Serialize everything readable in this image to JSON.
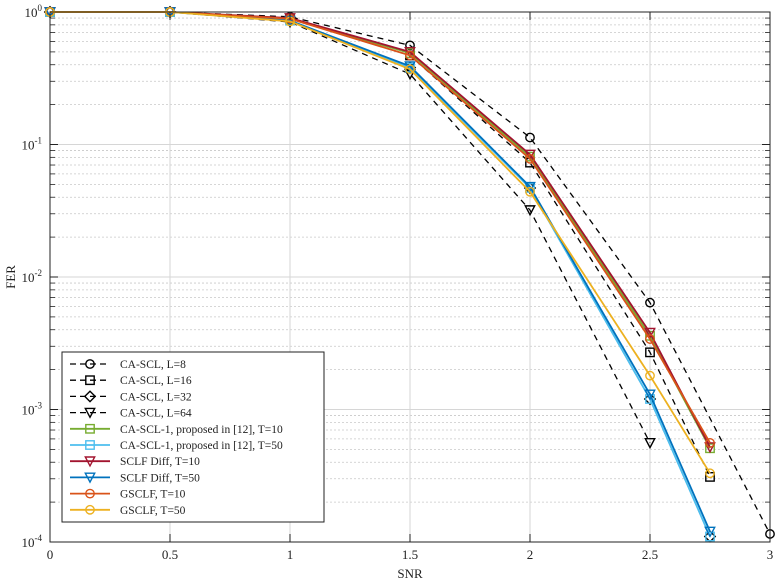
{
  "chart_data": {
    "type": "line",
    "title": "",
    "xlabel": "SNR",
    "ylabel": "FER",
    "xlim": [
      0,
      3
    ],
    "ylim": [
      0.0001,
      1
    ],
    "yscale": "log",
    "grid": true,
    "legend_position": "bottom-left",
    "x_ticks": [
      "0",
      "0.5",
      "1",
      "1.5",
      "2",
      "2.5",
      "3"
    ],
    "y_ticks": [
      {
        "base": "10",
        "exp": "0"
      },
      {
        "base": "10",
        "exp": "-1"
      },
      {
        "base": "10",
        "exp": "-2"
      },
      {
        "base": "10",
        "exp": "-3"
      },
      {
        "base": "10",
        "exp": "-4"
      }
    ],
    "series": [
      {
        "name": "CA-SCL, L=8",
        "color": "#000000",
        "dash": true,
        "marker": "circle",
        "x": [
          0,
          0.5,
          1,
          1.5,
          2,
          2.5,
          3
        ],
        "y": [
          1.0,
          1.0,
          0.92,
          0.56,
          0.113,
          0.0064,
          0.000115
        ]
      },
      {
        "name": "CA-SCL, L=16",
        "color": "#000000",
        "dash": true,
        "marker": "square",
        "x": [
          0,
          0.5,
          1,
          1.5,
          2,
          2.5,
          2.75
        ],
        "y": [
          1.0,
          1.0,
          0.89,
          0.47,
          0.073,
          0.0027,
          0.00031
        ]
      },
      {
        "name": "CA-SCL, L=32",
        "color": "#000000",
        "dash": true,
        "marker": "diamond",
        "x": [
          0,
          0.5,
          1,
          1.5,
          2,
          2.5,
          2.75
        ],
        "y": [
          1.0,
          1.0,
          0.86,
          0.38,
          0.047,
          0.0012,
          0.00011
        ]
      },
      {
        "name": "CA-SCL, L=64",
        "color": "#000000",
        "dash": true,
        "marker": "triangle-down",
        "x": [
          0,
          0.5,
          1,
          1.5,
          2,
          2.5
        ],
        "y": [
          1.0,
          1.0,
          0.84,
          0.34,
          0.032,
          0.00056
        ]
      },
      {
        "name": "CA-SCL-1, proposed in [12], T=10",
        "color": "#77ac30",
        "dash": false,
        "marker": "square",
        "x": [
          0,
          0.5,
          1,
          1.5,
          2,
          2.5,
          2.75
        ],
        "y": [
          1.0,
          1.0,
          0.89,
          0.49,
          0.081,
          0.0036,
          0.00051
        ]
      },
      {
        "name": "CA-SCL-1, proposed in [12],  T=50",
        "color": "#4dbeee",
        "dash": false,
        "marker": "square",
        "x": [
          0,
          0.5,
          1,
          1.5,
          2,
          2.5,
          2.75
        ],
        "y": [
          1.0,
          1.0,
          0.86,
          0.38,
          0.047,
          0.0012,
          0.00011
        ]
      },
      {
        "name": "SCLF Diff, T=10",
        "color": "#a2142f",
        "dash": false,
        "marker": "triangle-down",
        "x": [
          0,
          0.5,
          1,
          1.5,
          2,
          2.5,
          2.75
        ],
        "y": [
          1.0,
          1.0,
          0.9,
          0.5,
          0.084,
          0.0038,
          0.00052
        ]
      },
      {
        "name": "SCLF Diff, T=50",
        "color": "#0072bd",
        "dash": false,
        "marker": "triangle-down",
        "x": [
          0,
          0.5,
          1,
          1.5,
          2,
          2.5,
          2.75
        ],
        "y": [
          1.0,
          1.0,
          0.86,
          0.39,
          0.048,
          0.0013,
          0.00012
        ]
      },
      {
        "name": "GSCLF, T=10",
        "color": "#d95319",
        "dash": false,
        "marker": "circle",
        "x": [
          0,
          0.5,
          1,
          1.5,
          2,
          2.5,
          2.75
        ],
        "y": [
          1.0,
          1.0,
          0.89,
          0.47,
          0.078,
          0.0034,
          0.00056
        ]
      },
      {
        "name": "GSCLF, T=50",
        "color": "#edb120",
        "dash": false,
        "marker": "circle",
        "x": [
          0,
          0.5,
          1,
          1.5,
          2,
          2.5,
          2.75
        ],
        "y": [
          1.0,
          1.0,
          0.85,
          0.37,
          0.044,
          0.0018,
          0.00033
        ]
      }
    ]
  }
}
